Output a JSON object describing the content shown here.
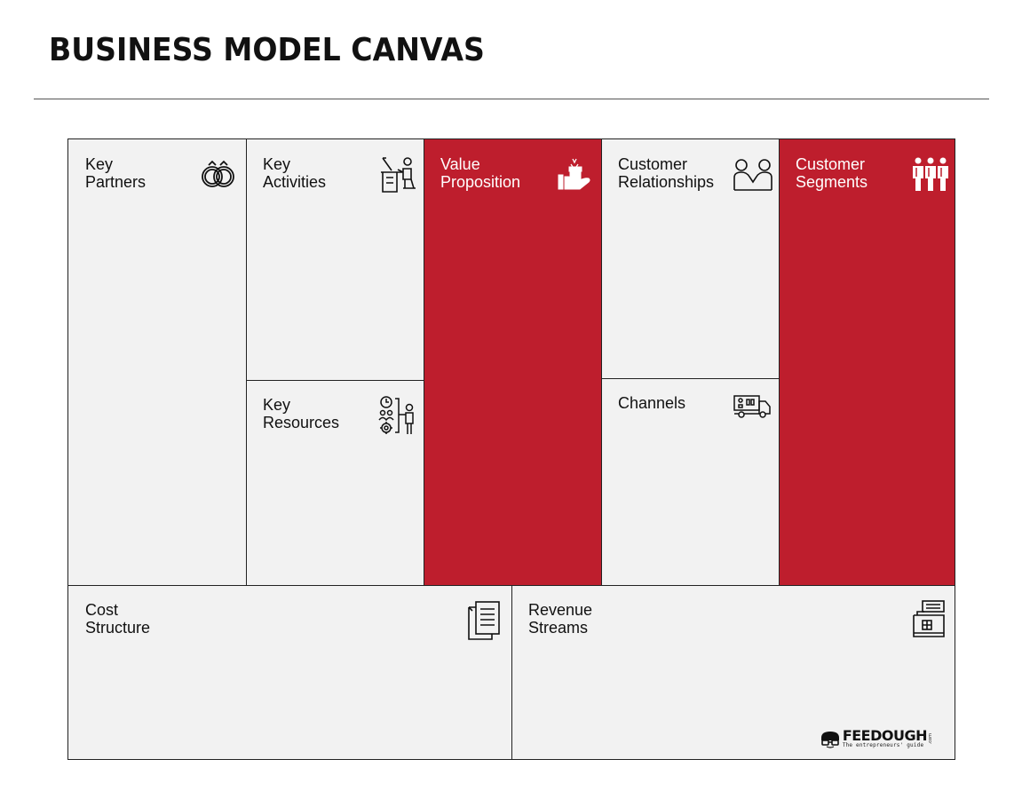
{
  "title": "BUSINESS MODEL CANVAS",
  "colors": {
    "accent": "#be1e2d",
    "panel": "#f2f2f2",
    "line": "#222222"
  },
  "blocks": {
    "key_partners": {
      "label": "Key\nPartners",
      "icon": "rings-icon"
    },
    "key_activities": {
      "label": "Key\nActivities",
      "icon": "worker-at-desk-icon"
    },
    "key_resources": {
      "label": "Key\nResources",
      "icon": "resources-people-gear-icon"
    },
    "value_proposition": {
      "label": "Value\nProposition",
      "icon": "gift-hand-icon"
    },
    "customer_relationships": {
      "label": "Customer\nRelationships",
      "icon": "two-people-icon"
    },
    "channels": {
      "label": "Channels",
      "icon": "delivery-truck-icon"
    },
    "customer_segments": {
      "label": "Customer\nSegments",
      "icon": "group-people-icon"
    },
    "cost_structure": {
      "label": "Cost\nStructure",
      "icon": "documents-icon"
    },
    "revenue_streams": {
      "label": "Revenue\nStreams",
      "icon": "cash-register-icon"
    }
  },
  "logo": {
    "name": "FEEDOUGH",
    "tagline": "The entrepreneurs' guide",
    "suffix": ".com"
  }
}
